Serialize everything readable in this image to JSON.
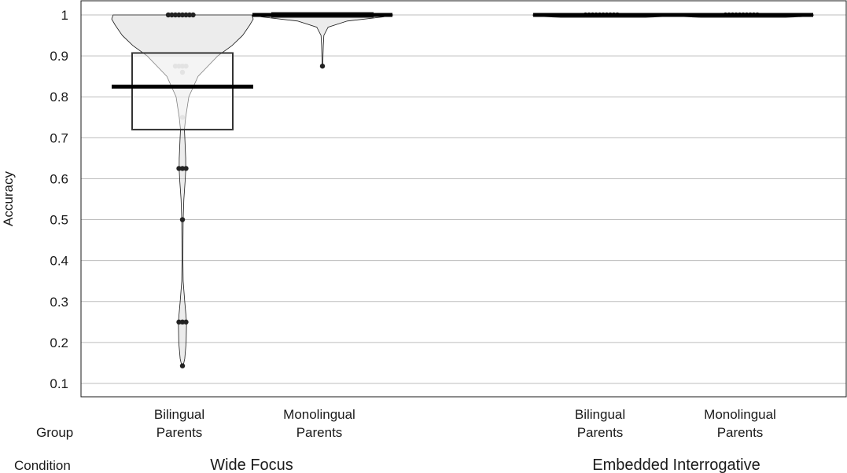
{
  "chart_data": {
    "type": "pirate",
    "xlabel": "",
    "ylabel": "Accuracy",
    "ylim": [
      0.075,
      1.02
    ],
    "yticks": [
      0.1,
      0.2,
      0.3,
      0.4,
      0.5,
      0.6,
      0.7,
      0.8,
      0.9,
      1
    ],
    "grid": true,
    "row_labels": {
      "group": "Group",
      "condition": "Condition"
    },
    "conditions": [
      {
        "name": "Wide Focus",
        "groups": [
          {
            "label_line1": "Bilingual",
            "label_line2": "Parents",
            "mean": 0.825,
            "hdi": [
              0.72,
              0.907
            ],
            "points": [
              1,
              1,
              1,
              1,
              1,
              1,
              1,
              1,
              0.875,
              0.875,
              0.875,
              0.875,
              0.86,
              0.75,
              0.625,
              0.625,
              0.625,
              0.5,
              0.25,
              0.25,
              0.25,
              0.143
            ],
            "density": [
              [
                0.14,
                0.006
              ],
              [
                0.16,
                0.032
              ],
              [
                0.2,
                0.052
              ],
              [
                0.25,
                0.058
              ],
              [
                0.3,
                0.032
              ],
              [
                0.35,
                0.01
              ],
              [
                0.4,
                0.007
              ],
              [
                0.45,
                0.008
              ],
              [
                0.5,
                0.01
              ],
              [
                0.55,
                0.02
              ],
              [
                0.6,
                0.04
              ],
              [
                0.625,
                0.047
              ],
              [
                0.65,
                0.045
              ],
              [
                0.7,
                0.033
              ],
              [
                0.72,
                0.028
              ],
              [
                0.75,
                0.045
              ],
              [
                0.8,
                0.09
              ],
              [
                0.85,
                0.22
              ],
              [
                0.875,
                0.36
              ],
              [
                0.9,
                0.5
              ],
              [
                0.925,
                0.7
              ],
              [
                0.95,
                0.85
              ],
              [
                0.975,
                0.95
              ],
              [
                0.99,
                1.0
              ],
              [
                1.0,
                0.98
              ]
            ]
          },
          {
            "label_line1": "Monolingual",
            "label_line2": "Parents",
            "mean": 1.0,
            "hdi": [
              0.995,
              1.005
            ],
            "points": [
              1,
              1,
              1,
              1,
              1,
              1,
              1,
              1,
              1,
              1,
              0.875
            ],
            "density": [
              [
                0.875,
                0.006
              ],
              [
                0.9,
                0.008
              ],
              [
                0.925,
                0.012
              ],
              [
                0.95,
                0.02
              ],
              [
                0.97,
                0.08
              ],
              [
                0.985,
                0.35
              ],
              [
                0.995,
                0.85
              ],
              [
                1.0,
                1.0
              ]
            ]
          }
        ]
      },
      {
        "name": "Embedded Interrogative",
        "groups": [
          {
            "label_line1": "Bilingual",
            "label_line2": "Parents",
            "mean": 1.0,
            "hdi": [
              0.996,
              1.002
            ],
            "points": [
              1,
              1,
              1,
              1,
              1,
              1,
              1,
              1,
              1,
              1
            ],
            "density": [
              [
                0.994,
                0.6
              ],
              [
                0.997,
                0.95
              ],
              [
                1.0,
                1.0
              ]
            ]
          },
          {
            "label_line1": "Monolingual",
            "label_line2": "Parents",
            "mean": 1.0,
            "hdi": [
              0.996,
              1.002
            ],
            "points": [
              1,
              1,
              1,
              1,
              1,
              1,
              1,
              1,
              1,
              1
            ],
            "density": [
              [
                0.994,
                0.6
              ],
              [
                0.997,
                0.95
              ],
              [
                1.0,
                1.0
              ]
            ]
          }
        ]
      }
    ]
  }
}
